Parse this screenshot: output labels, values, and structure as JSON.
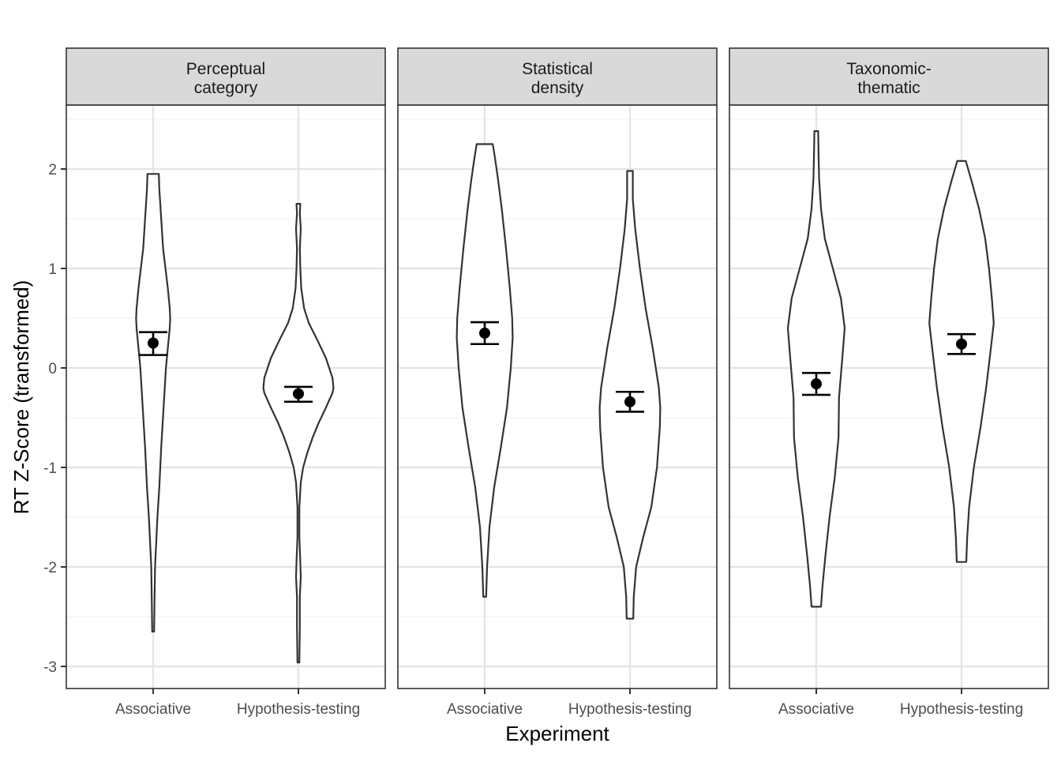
{
  "chart_data": {
    "type": "violin",
    "xlabel": "Experiment",
    "ylabel": "RT Z-Score (transformed)",
    "ylim": [
      -3.2,
      2.6
    ],
    "yticks": [
      2,
      1,
      0,
      -1,
      -2,
      -3
    ],
    "ytick_labels": [
      "2",
      "1",
      "0",
      "-1",
      "-2",
      "-3"
    ],
    "categories": [
      "Associative",
      "Hypothesis-testing"
    ],
    "grid": true,
    "colors": {
      "strip_fill": "#d9d9d9",
      "outline": "#333333",
      "grid_major": "#e5e5e5",
      "grid_minor": "#f2f2f2",
      "point": "#000000"
    },
    "panels": [
      {
        "title_lines": [
          "Perceptual",
          "category"
        ],
        "groups": [
          {
            "category": "Associative",
            "mean": 0.25,
            "ci_low": 0.13,
            "ci_high": 0.36,
            "violin": [
              [
                -2.65,
                0.02
              ],
              [
                -2.3,
                0.03
              ],
              [
                -2.0,
                0.04
              ],
              [
                -1.8,
                0.06
              ],
              [
                -1.5,
                0.09
              ],
              [
                -1.2,
                0.13
              ],
              [
                -0.8,
                0.17
              ],
              [
                -0.4,
                0.22
              ],
              [
                0.0,
                0.27
              ],
              [
                0.2,
                0.31
              ],
              [
                0.4,
                0.35
              ],
              [
                0.5,
                0.36
              ],
              [
                0.6,
                0.35
              ],
              [
                0.8,
                0.31
              ],
              [
                1.0,
                0.26
              ],
              [
                1.2,
                0.21
              ],
              [
                1.5,
                0.17
              ],
              [
                1.8,
                0.13
              ],
              [
                1.95,
                0.12
              ]
            ]
          },
          {
            "category": "Hypothesis-testing",
            "mean": -0.26,
            "ci_low": -0.34,
            "ci_high": -0.19,
            "violin": [
              [
                -2.96,
                0.02
              ],
              [
                -2.6,
                0.03
              ],
              [
                -2.3,
                0.03
              ],
              [
                -2.1,
                0.05
              ],
              [
                -1.95,
                0.04
              ],
              [
                -1.7,
                0.02
              ],
              [
                -1.4,
                0.02
              ],
              [
                -1.15,
                0.05
              ],
              [
                -1.0,
                0.1
              ],
              [
                -0.85,
                0.19
              ],
              [
                -0.7,
                0.3
              ],
              [
                -0.55,
                0.43
              ],
              [
                -0.4,
                0.58
              ],
              [
                -0.25,
                0.72
              ],
              [
                -0.2,
                0.74
              ],
              [
                -0.1,
                0.72
              ],
              [
                0.1,
                0.58
              ],
              [
                0.3,
                0.38
              ],
              [
                0.45,
                0.22
              ],
              [
                0.6,
                0.12
              ],
              [
                0.8,
                0.06
              ],
              [
                1.0,
                0.04
              ],
              [
                1.2,
                0.03
              ],
              [
                1.4,
                0.05
              ],
              [
                1.55,
                0.03
              ],
              [
                1.65,
                0.04
              ]
            ]
          }
        ]
      },
      {
        "title_lines": [
          "Statistical",
          "density"
        ],
        "groups": [
          {
            "category": "Associative",
            "mean": 0.35,
            "ci_low": 0.24,
            "ci_high": 0.46,
            "violin": [
              [
                -2.3,
                0.03
              ],
              [
                -2.0,
                0.05
              ],
              [
                -1.6,
                0.1
              ],
              [
                -1.2,
                0.2
              ],
              [
                -0.8,
                0.34
              ],
              [
                -0.4,
                0.47
              ],
              [
                0.0,
                0.55
              ],
              [
                0.3,
                0.59
              ],
              [
                0.5,
                0.58
              ],
              [
                0.8,
                0.53
              ],
              [
                1.2,
                0.45
              ],
              [
                1.6,
                0.36
              ],
              [
                1.9,
                0.28
              ],
              [
                2.1,
                0.22
              ],
              [
                2.25,
                0.17
              ]
            ]
          },
          {
            "category": "Hypothesis-testing",
            "mean": -0.34,
            "ci_low": -0.44,
            "ci_high": -0.24,
            "violin": [
              [
                -2.52,
                0.07
              ],
              [
                -2.3,
                0.08
              ],
              [
                -2.0,
                0.13
              ],
              [
                -1.7,
                0.28
              ],
              [
                -1.4,
                0.45
              ],
              [
                -1.0,
                0.57
              ],
              [
                -0.6,
                0.63
              ],
              [
                -0.4,
                0.64
              ],
              [
                -0.2,
                0.61
              ],
              [
                0.2,
                0.48
              ],
              [
                0.6,
                0.33
              ],
              [
                1.0,
                0.21
              ],
              [
                1.4,
                0.11
              ],
              [
                1.7,
                0.06
              ],
              [
                1.98,
                0.06
              ]
            ]
          }
        ]
      },
      {
        "title_lines": [
          "Taxonomic-",
          "thematic"
        ],
        "groups": [
          {
            "category": "Associative",
            "mean": -0.16,
            "ci_low": -0.27,
            "ci_high": -0.05,
            "violin": [
              [
                -2.4,
                0.1
              ],
              [
                -2.2,
                0.13
              ],
              [
                -1.9,
                0.19
              ],
              [
                -1.5,
                0.28
              ],
              [
                -1.1,
                0.39
              ],
              [
                -0.7,
                0.47
              ],
              [
                -0.3,
                0.48
              ],
              [
                0.1,
                0.55
              ],
              [
                0.4,
                0.6
              ],
              [
                0.7,
                0.52
              ],
              [
                1.0,
                0.35
              ],
              [
                1.3,
                0.18
              ],
              [
                1.6,
                0.1
              ],
              [
                1.9,
                0.06
              ],
              [
                2.1,
                0.05
              ],
              [
                2.38,
                0.04
              ]
            ]
          },
          {
            "category": "Hypothesis-testing",
            "mean": 0.24,
            "ci_low": 0.14,
            "ci_high": 0.34,
            "violin": [
              [
                -1.95,
                0.1
              ],
              [
                -1.7,
                0.12
              ],
              [
                -1.4,
                0.16
              ],
              [
                -1.0,
                0.26
              ],
              [
                -0.6,
                0.4
              ],
              [
                -0.2,
                0.52
              ],
              [
                0.2,
                0.62
              ],
              [
                0.45,
                0.68
              ],
              [
                0.7,
                0.64
              ],
              [
                1.0,
                0.58
              ],
              [
                1.3,
                0.5
              ],
              [
                1.6,
                0.37
              ],
              [
                1.9,
                0.2
              ],
              [
                2.08,
                0.09
              ]
            ]
          }
        ]
      }
    ]
  }
}
